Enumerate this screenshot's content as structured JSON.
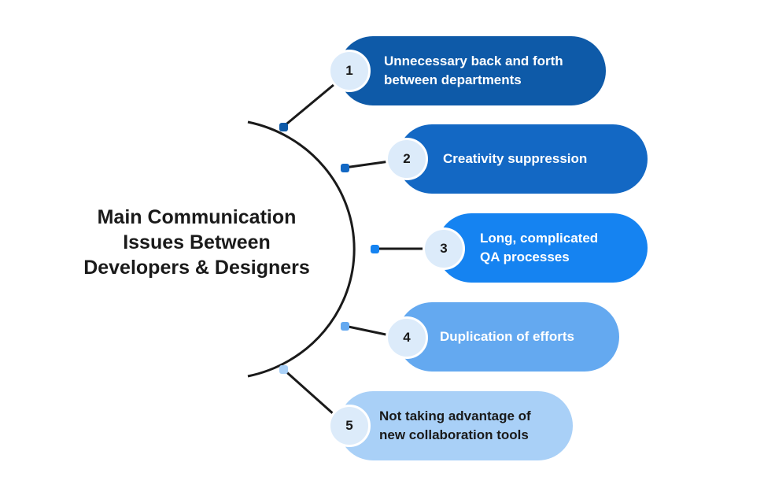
{
  "title": "Main Communication\nIssues Between\nDevelopers & Designers",
  "items": [
    {
      "number": "1",
      "label": "Unnecessary back and forth\nbetween departments",
      "color": "#0e5aa8",
      "dot": "#0e5aa8"
    },
    {
      "number": "2",
      "label": "Creativity suppression",
      "color": "#1368c4",
      "dot": "#1368c4"
    },
    {
      "number": "3",
      "label": "Long, complicated\nQA processes",
      "color": "#1583f1",
      "dot": "#1583f1"
    },
    {
      "number": "4",
      "label": "Duplication of efforts",
      "color": "#64a9f0",
      "dot": "#64a9f0"
    },
    {
      "number": "5",
      "label": "Not taking advantage of\nnew collaboration tools",
      "color": "#a9d0f7",
      "dot": "#a9d0f7"
    }
  ],
  "colors": {
    "line": "#1a1a1a",
    "badge_bg": "#dcebfa"
  }
}
